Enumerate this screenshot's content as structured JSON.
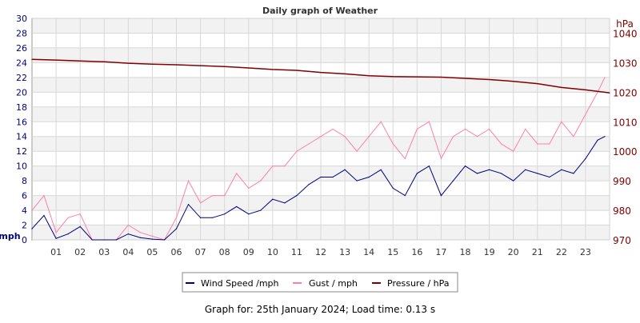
{
  "chart_data": {
    "type": "line",
    "title": "Daily graph of Weather",
    "xlabel": "",
    "ylabel": "mph",
    "ylabel_right": "hPa",
    "xlim": [
      0,
      24
    ],
    "ylim": [
      0,
      30
    ],
    "ylim_right": [
      970,
      1045
    ],
    "x_ticks": [
      "01",
      "02",
      "03",
      "04",
      "05",
      "06",
      "07",
      "08",
      "09",
      "10",
      "11",
      "12",
      "13",
      "14",
      "15",
      "16",
      "17",
      "18",
      "19",
      "20",
      "21",
      "22",
      "23"
    ],
    "y_ticks": [
      0,
      2,
      4,
      6,
      8,
      10,
      12,
      14,
      16,
      18,
      20,
      22,
      24,
      26,
      28,
      30
    ],
    "y_ticks_right": [
      970,
      980,
      990,
      1000,
      1010,
      1020,
      1030,
      1040
    ],
    "grid": true,
    "legend_position": "bottom",
    "colors": {
      "wind": "#000080",
      "gust": "#ff7fa8",
      "pressure": "#800000",
      "left_axis": "#000080",
      "right_axis": "#800000"
    },
    "series": [
      {
        "name": "Wind Speed /mph",
        "axis": "left",
        "x": [
          0,
          0.5,
          1,
          1.5,
          2,
          2.5,
          3,
          3.5,
          4,
          4.5,
          5,
          5.5,
          6,
          6.5,
          7,
          7.5,
          8,
          8.5,
          9,
          9.5,
          10,
          10.5,
          11,
          11.5,
          12,
          12.5,
          13,
          13.5,
          14,
          14.5,
          15,
          15.5,
          16,
          16.5,
          17,
          17.5,
          18,
          18.5,
          19,
          19.5,
          20,
          20.5,
          21,
          21.5,
          22,
          22.5,
          23,
          23.5,
          23.8
        ],
        "values": [
          1.5,
          3.3,
          0.2,
          0.8,
          1.8,
          0,
          0,
          0,
          0.8,
          0.3,
          0.1,
          0,
          1.5,
          4.8,
          3,
          3,
          3.5,
          4.5,
          3.5,
          4,
          5.5,
          5,
          6,
          7.5,
          8.5,
          8.5,
          9.5,
          8,
          8.5,
          9.5,
          7,
          6,
          9,
          10,
          6,
          8,
          10,
          9,
          9.5,
          9,
          8,
          9.5,
          9,
          8.5,
          9.5,
          9,
          11,
          13.5,
          14
        ]
      },
      {
        "name": "Gust / mph",
        "axis": "left",
        "x": [
          0,
          0.5,
          1,
          1.5,
          2,
          2.5,
          3,
          3.5,
          4,
          4.5,
          5,
          5.5,
          6,
          6.5,
          7,
          7.5,
          8,
          8.5,
          9,
          9.5,
          10,
          10.5,
          11,
          11.5,
          12,
          12.5,
          13,
          13.5,
          14,
          14.5,
          15,
          15.5,
          16,
          16.5,
          17,
          17.5,
          18,
          18.5,
          19,
          19.5,
          20,
          20.5,
          21,
          21.5,
          22,
          22.5,
          23,
          23.5,
          23.8
        ],
        "values": [
          4,
          6,
          1,
          3,
          3.5,
          0,
          0,
          0,
          2,
          1,
          0.5,
          0,
          3,
          8,
          5,
          6,
          6,
          9,
          7,
          8,
          10,
          10,
          12,
          13,
          14,
          15,
          14,
          12,
          14,
          16,
          13,
          11,
          15,
          16,
          11,
          14,
          15,
          14,
          15,
          13,
          12,
          15,
          13,
          13,
          16,
          14,
          17,
          20,
          22
        ]
      },
      {
        "name": "Pressure / hPa",
        "axis": "right",
        "x": [
          0,
          1,
          2,
          3,
          4,
          5,
          6,
          7,
          8,
          9,
          10,
          11,
          12,
          13,
          14,
          15,
          16,
          17,
          18,
          19,
          20,
          21,
          22,
          23,
          24
        ],
        "values": [
          1031.1,
          1030.9,
          1030.6,
          1030.3,
          1029.8,
          1029.5,
          1029.3,
          1029.0,
          1028.7,
          1028.2,
          1027.7,
          1027.4,
          1026.7,
          1026.2,
          1025.6,
          1025.3,
          1025.2,
          1025.1,
          1024.7,
          1024.3,
          1023.7,
          1022.9,
          1021.6,
          1020.8,
          1019.8
        ]
      }
    ]
  },
  "footer": "Graph for: 25th January 2024; Load time: 0.13 s"
}
